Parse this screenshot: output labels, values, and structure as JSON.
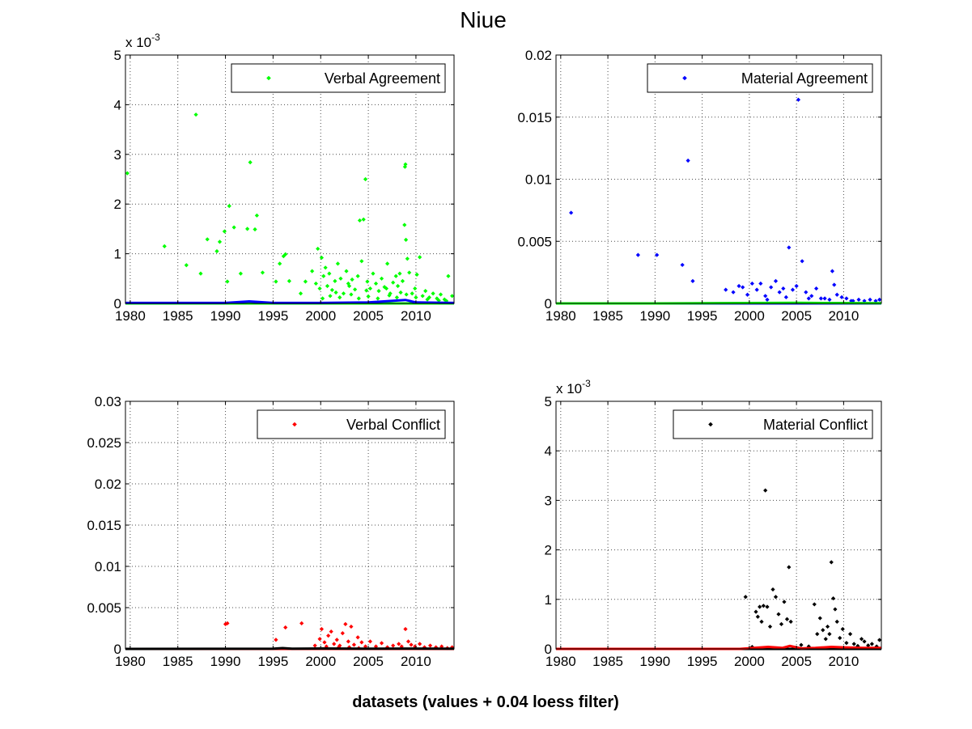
{
  "figure": {
    "title": "Niue",
    "xlabel": "datasets (values + 0.04 loess filter)"
  },
  "chart_data": [
    {
      "type": "scatter",
      "legend": "Verbal Agreement",
      "legend_position": "top-right",
      "grid": true,
      "xlim": [
        1979.5,
        2014
      ],
      "ylim": [
        0,
        5
      ],
      "exponent_label": "x 10",
      "exponent_sup": "-3",
      "xticks": [
        "1980",
        "1985",
        "1990",
        "1995",
        "2000",
        "2005",
        "2010"
      ],
      "xtick_values": [
        1980,
        1985,
        1990,
        1995,
        2000,
        2005,
        2010
      ],
      "yticks": [
        "0",
        "1",
        "2",
        "3",
        "4",
        "5"
      ],
      "ytick_values": [
        0,
        1,
        2,
        3,
        4,
        5
      ],
      "point_color": "#00ff00",
      "line_color": "#0000ff",
      "points": [
        [
          1979.7,
          2.62
        ],
        [
          1983.6,
          1.15
        ],
        [
          1985.9,
          0.77
        ],
        [
          1986.9,
          3.8
        ],
        [
          1987.4,
          0.6
        ],
        [
          1988.1,
          1.29
        ],
        [
          1989.1,
          1.05
        ],
        [
          1989.4,
          1.24
        ],
        [
          1989.9,
          1.45
        ],
        [
          1990.2,
          0.44
        ],
        [
          1990.4,
          1.96
        ],
        [
          1990.9,
          1.53
        ],
        [
          1991.6,
          0.6
        ],
        [
          1992.3,
          1.5
        ],
        [
          1992.6,
          2.84
        ],
        [
          1993.1,
          1.49
        ],
        [
          1993.3,
          1.77
        ],
        [
          1993.9,
          0.62
        ],
        [
          1995.3,
          0.44
        ],
        [
          1995.7,
          0.8
        ],
        [
          1996.1,
          0.95
        ],
        [
          1996.3,
          0.99
        ],
        [
          1996.7,
          0.45
        ],
        [
          1997.9,
          0.2
        ],
        [
          1998.4,
          0.44
        ],
        [
          1999.1,
          0.65
        ],
        [
          1999.7,
          1.1
        ],
        [
          1999.9,
          0.3
        ],
        [
          2000.1,
          0.92
        ],
        [
          2000.3,
          0.55
        ],
        [
          2000.5,
          0.72
        ],
        [
          2000.7,
          0.35
        ],
        [
          2000.9,
          0.6
        ],
        [
          2001.2,
          0.27
        ],
        [
          2001.5,
          0.45
        ],
        [
          2001.8,
          0.8
        ],
        [
          2002.1,
          0.5
        ],
        [
          2002.4,
          0.2
        ],
        [
          2002.7,
          0.65
        ],
        [
          2003.0,
          0.35
        ],
        [
          2003.3,
          0.48
        ],
        [
          2003.6,
          0.28
        ],
        [
          2003.9,
          0.55
        ],
        [
          2004.1,
          1.67
        ],
        [
          2004.3,
          0.85
        ],
        [
          2004.5,
          1.69
        ],
        [
          2004.7,
          2.5
        ],
        [
          2004.9,
          0.44
        ],
        [
          2005.2,
          0.3
        ],
        [
          2005.5,
          0.6
        ],
        [
          2005.8,
          0.4
        ],
        [
          2006.1,
          0.25
        ],
        [
          2006.4,
          0.5
        ],
        [
          2006.7,
          0.33
        ],
        [
          2007.0,
          0.8
        ],
        [
          2007.3,
          0.2
        ],
        [
          2007.6,
          0.42
        ],
        [
          2007.9,
          0.55
        ],
        [
          2008.1,
          0.35
        ],
        [
          2008.3,
          0.6
        ],
        [
          2008.6,
          0.45
        ],
        [
          2008.8,
          1.58
        ],
        [
          2008.85,
          2.75
        ],
        [
          2008.9,
          2.8
        ],
        [
          2008.95,
          1.28
        ],
        [
          2009.1,
          0.9
        ],
        [
          2009.3,
          0.62
        ],
        [
          2009.6,
          0.2
        ],
        [
          2009.9,
          0.3
        ],
        [
          2010.1,
          0.58
        ],
        [
          2010.4,
          0.93
        ],
        [
          2010.7,
          0.15
        ],
        [
          2011.0,
          0.25
        ],
        [
          2011.4,
          0.12
        ],
        [
          2011.8,
          0.2
        ],
        [
          2012.2,
          0.1
        ],
        [
          2012.6,
          0.18
        ],
        [
          2013.0,
          0.08
        ],
        [
          2013.4,
          0.55
        ],
        [
          2013.8,
          0.15
        ],
        [
          2000.2,
          0.1
        ],
        [
          2001.0,
          0.15
        ],
        [
          2002.0,
          0.12
        ],
        [
          2003.2,
          0.18
        ],
        [
          2004.0,
          0.1
        ],
        [
          2005.0,
          0.14
        ],
        [
          2006.0,
          0.1
        ],
        [
          2007.2,
          0.16
        ],
        [
          2008.0,
          0.12
        ],
        [
          2009.0,
          0.18
        ],
        [
          2010.0,
          0.12
        ],
        [
          2011.2,
          0.08
        ],
        [
          2012.4,
          0.06
        ],
        [
          2013.2,
          0.05
        ],
        [
          1999.5,
          0.4
        ],
        [
          2001.6,
          0.22
        ],
        [
          2002.9,
          0.4
        ],
        [
          2004.8,
          0.26
        ],
        [
          2006.9,
          0.3
        ],
        [
          2008.4,
          0.22
        ]
      ],
      "line": [
        [
          1979.5,
          0.01
        ],
        [
          1985,
          0.01
        ],
        [
          1990,
          0.01
        ],
        [
          1992.5,
          0.04
        ],
        [
          1995,
          0.01
        ],
        [
          2000,
          0.01
        ],
        [
          2005,
          0.02
        ],
        [
          2008.9,
          0.07
        ],
        [
          2010,
          0.02
        ],
        [
          2014,
          0.01
        ]
      ],
      "flat_line": [
        [
          1979.5,
          0.0
        ],
        [
          2014,
          0.0
        ]
      ]
    },
    {
      "type": "scatter",
      "legend": "Material Agreement",
      "legend_position": "top-right",
      "grid": true,
      "xlim": [
        1979.5,
        2014
      ],
      "ylim": [
        0,
        0.02
      ],
      "xticks": [
        "1980",
        "1985",
        "1990",
        "1995",
        "2000",
        "2005",
        "2010"
      ],
      "xtick_values": [
        1980,
        1985,
        1990,
        1995,
        2000,
        2005,
        2010
      ],
      "yticks": [
        "0",
        "0.005",
        "0.01",
        "0.015",
        "0.02"
      ],
      "ytick_values": [
        0,
        0.005,
        0.01,
        0.015,
        0.02
      ],
      "point_color": "#0000ff",
      "line_color": "#00ff00",
      "points": [
        [
          1981.1,
          0.0073
        ],
        [
          1988.2,
          0.0039
        ],
        [
          1990.2,
          0.0039
        ],
        [
          1992.9,
          0.0031
        ],
        [
          1993.5,
          0.0115
        ],
        [
          1994.0,
          0.0018
        ],
        [
          1997.5,
          0.0011
        ],
        [
          1998.3,
          0.0009
        ],
        [
          1998.9,
          0.0014
        ],
        [
          1999.3,
          0.0013
        ],
        [
          1999.8,
          0.0007
        ],
        [
          2000.3,
          0.0016
        ],
        [
          2000.8,
          0.0011
        ],
        [
          2001.2,
          0.0016
        ],
        [
          2001.7,
          0.0006
        ],
        [
          2002.3,
          0.0013
        ],
        [
          2002.8,
          0.0018
        ],
        [
          2003.2,
          0.0009
        ],
        [
          2003.6,
          0.0012
        ],
        [
          2004.2,
          0.0045
        ],
        [
          2004.6,
          0.0011
        ],
        [
          2005.0,
          0.0014
        ],
        [
          2005.2,
          0.0164
        ],
        [
          2005.6,
          0.0034
        ],
        [
          2006.0,
          0.0009
        ],
        [
          2006.6,
          0.0006
        ],
        [
          2007.1,
          0.0012
        ],
        [
          2007.6,
          0.0004
        ],
        [
          2008.0,
          0.0004
        ],
        [
          2008.5,
          0.0003
        ],
        [
          2008.8,
          0.0026
        ],
        [
          2009.0,
          0.0015
        ],
        [
          2009.3,
          0.0007
        ],
        [
          2009.8,
          0.0005
        ],
        [
          2010.3,
          0.0004
        ],
        [
          2011.0,
          0.0002
        ],
        [
          2011.6,
          0.0003
        ],
        [
          2012.2,
          0.0002
        ],
        [
          2012.8,
          0.0003
        ],
        [
          2013.4,
          0.0002
        ],
        [
          2013.8,
          0.0003
        ],
        [
          2001.9,
          0.0003
        ],
        [
          2003.9,
          0.0005
        ],
        [
          2006.3,
          0.0004
        ],
        [
          2010.8,
          0.0002
        ]
      ],
      "line": [
        [
          1979.5,
          0.0
        ],
        [
          1990,
          0.0
        ],
        [
          1995,
          2e-05
        ],
        [
          2000,
          3e-05
        ],
        [
          2005,
          5e-05
        ],
        [
          2008,
          3e-05
        ],
        [
          2014,
          2e-05
        ]
      ],
      "flat_line": [
        [
          1979.5,
          0.0
        ],
        [
          2014,
          0.0
        ]
      ]
    },
    {
      "type": "scatter",
      "legend": "Verbal Conflict",
      "legend_position": "top-right",
      "grid": true,
      "xlim": [
        1979.5,
        2014
      ],
      "ylim": [
        0,
        0.03
      ],
      "xticks": [
        "1980",
        "1985",
        "1990",
        "1995",
        "2000",
        "2005",
        "2010"
      ],
      "xtick_values": [
        1980,
        1985,
        1990,
        1995,
        2000,
        2005,
        2010
      ],
      "yticks": [
        "0",
        "0.005",
        "0.01",
        "0.015",
        "0.02",
        "0.025",
        "0.03"
      ],
      "ytick_values": [
        0,
        0.005,
        0.01,
        0.015,
        0.02,
        0.025,
        0.03
      ],
      "point_color": "#ff0000",
      "line_color": "#000000",
      "points": [
        [
          1990.0,
          0.003
        ],
        [
          1990.2,
          0.0031
        ],
        [
          1995.3,
          0.0011
        ],
        [
          1996.3,
          0.0026
        ],
        [
          1998.0,
          0.0031
        ],
        [
          1999.4,
          0.0004
        ],
        [
          1999.9,
          0.0012
        ],
        [
          2000.1,
          0.0024
        ],
        [
          2000.4,
          0.0008
        ],
        [
          2000.8,
          0.0016
        ],
        [
          2001.1,
          0.0021
        ],
        [
          2001.4,
          0.0006
        ],
        [
          2001.7,
          0.0011
        ],
        [
          2002.0,
          0.0004
        ],
        [
          2002.3,
          0.0019
        ],
        [
          2002.6,
          0.003
        ],
        [
          2002.9,
          0.0009
        ],
        [
          2003.2,
          0.0027
        ],
        [
          2003.5,
          0.0005
        ],
        [
          2003.9,
          0.0014
        ],
        [
          2004.3,
          0.0008
        ],
        [
          2004.7,
          0.0003
        ],
        [
          2005.2,
          0.0009
        ],
        [
          2005.8,
          0.0003
        ],
        [
          2006.4,
          0.0007
        ],
        [
          2007.0,
          0.0002
        ],
        [
          2007.6,
          0.0004
        ],
        [
          2008.2,
          0.0006
        ],
        [
          2008.5,
          0.0003
        ],
        [
          2008.9,
          0.0024
        ],
        [
          2009.2,
          0.0009
        ],
        [
          2009.5,
          0.0005
        ],
        [
          2009.9,
          0.0003
        ],
        [
          2010.4,
          0.0006
        ],
        [
          2010.9,
          0.0002
        ],
        [
          2011.5,
          0.0004
        ],
        [
          2012.1,
          0.0002
        ],
        [
          2012.7,
          0.0003
        ],
        [
          2013.3,
          0.0001
        ],
        [
          2013.8,
          0.0002
        ],
        [
          2000.6,
          0.0003
        ],
        [
          2001.9,
          0.0002
        ],
        [
          2003.0,
          0.0002
        ],
        [
          2004.0,
          0.0001
        ]
      ],
      "line": [
        [
          1979.5,
          0.0
        ],
        [
          1995,
          3e-05
        ],
        [
          1996,
          0.0001
        ],
        [
          1997,
          3e-05
        ],
        [
          2000,
          5e-05
        ],
        [
          2005,
          3e-05
        ],
        [
          2009,
          4e-05
        ],
        [
          2014,
          2e-05
        ]
      ],
      "flat_line": [
        [
          1979.5,
          0.0
        ],
        [
          2014,
          0.0
        ]
      ]
    },
    {
      "type": "scatter",
      "legend": "Material Conflict",
      "legend_position": "top-right",
      "grid": true,
      "xlim": [
        1979.5,
        2014
      ],
      "ylim": [
        0,
        5
      ],
      "exponent_label": "x 10",
      "exponent_sup": "-3",
      "xticks": [
        "1980",
        "1985",
        "1990",
        "1995",
        "2000",
        "2005",
        "2010"
      ],
      "xtick_values": [
        1980,
        1985,
        1990,
        1995,
        2000,
        2005,
        2010
      ],
      "yticks": [
        "0",
        "1",
        "2",
        "3",
        "4",
        "5"
      ],
      "ytick_values": [
        0,
        1,
        2,
        3,
        4,
        5
      ],
      "point_color": "#000000",
      "line_color": "#ff0000",
      "points": [
        [
          1999.6,
          1.05
        ],
        [
          2000.7,
          0.75
        ],
        [
          2000.9,
          0.65
        ],
        [
          2001.1,
          0.85
        ],
        [
          2001.3,
          0.55
        ],
        [
          2001.5,
          0.87
        ],
        [
          2001.7,
          3.2
        ],
        [
          2001.9,
          0.85
        ],
        [
          2002.2,
          0.45
        ],
        [
          2002.5,
          1.2
        ],
        [
          2002.8,
          1.05
        ],
        [
          2003.1,
          0.7
        ],
        [
          2003.4,
          0.5
        ],
        [
          2003.7,
          0.95
        ],
        [
          2004.0,
          0.6
        ],
        [
          2004.2,
          1.65
        ],
        [
          2004.4,
          0.55
        ],
        [
          2006.9,
          0.9
        ],
        [
          2007.2,
          0.3
        ],
        [
          2007.5,
          0.62
        ],
        [
          2007.8,
          0.38
        ],
        [
          2008.1,
          0.2
        ],
        [
          2008.3,
          0.45
        ],
        [
          2008.5,
          0.3
        ],
        [
          2008.7,
          1.75
        ],
        [
          2008.9,
          1.02
        ],
        [
          2009.1,
          0.8
        ],
        [
          2009.3,
          0.55
        ],
        [
          2009.6,
          0.22
        ],
        [
          2009.9,
          0.4
        ],
        [
          2010.3,
          0.12
        ],
        [
          2010.7,
          0.3
        ],
        [
          2011.1,
          0.1
        ],
        [
          2011.5,
          0.06
        ],
        [
          2011.9,
          0.2
        ],
        [
          2012.2,
          0.15
        ],
        [
          2012.6,
          0.07
        ],
        [
          2013.0,
          0.1
        ],
        [
          2013.5,
          0.05
        ],
        [
          2013.8,
          0.18
        ],
        [
          2005.5,
          0.08
        ],
        [
          2006.3,
          0.05
        ],
        [
          2000.3,
          0.04
        ]
      ],
      "line": [
        [
          1979.5,
          0.0
        ],
        [
          1999,
          0.0
        ],
        [
          2000.5,
          0.02
        ],
        [
          2002,
          0.04
        ],
        [
          2003.5,
          0.02
        ],
        [
          2004.3,
          0.06
        ],
        [
          2005.5,
          0.01
        ],
        [
          2007,
          0.02
        ],
        [
          2008.7,
          0.04
        ],
        [
          2010,
          0.03
        ],
        [
          2012,
          0.02
        ],
        [
          2014,
          0.02
        ]
      ],
      "flat_line": [
        [
          1979.5,
          0.0
        ],
        [
          2014,
          0.0
        ]
      ]
    }
  ]
}
